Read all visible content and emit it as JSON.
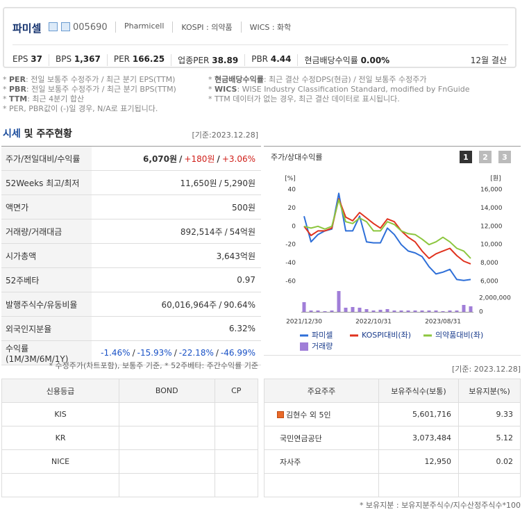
{
  "header": {
    "name": "파미셀",
    "code": "005690",
    "info": [
      "Pharmicell",
      "KOSPI : 의약품",
      "WICS : 화학"
    ],
    "metrics": [
      {
        "label": "EPS",
        "value": "37"
      },
      {
        "label": "BPS",
        "value": "1,367"
      },
      {
        "label": "PER",
        "value": "166.25"
      },
      {
        "label": "업종PER",
        "value": "38.89"
      },
      {
        "label": "PBR",
        "value": "4.44"
      },
      {
        "label": "현금배당수익률",
        "value": "0.00%"
      }
    ],
    "settle": "12월 결산"
  },
  "notes": {
    "left": [
      {
        "star": "*",
        "term": "PER",
        "text": ": 전일 보통주 수정주가 / 최근 분기 EPS(TTM)"
      },
      {
        "star": "*",
        "term": "PBR",
        "text": ": 전일 보통주 수정주가 / 최근 분기 BPS(TTM)"
      },
      {
        "star": "*",
        "term": "TTM",
        "text": ": 최근 4분기 합산"
      },
      {
        "star": "*",
        "text": "PER, PBR값이 (-)일 경우, N/A로 표기됩니다."
      }
    ],
    "right": [
      {
        "star": "*",
        "term": "현금배당수익률",
        "text": ": 최근 결산 수정DPS(현금) / 전일 보통주 수정주가"
      },
      {
        "star": "*",
        "term": "WICS",
        "text": ": WISE Industry Classification Standard, modified by FnGuide"
      },
      {
        "star": "*",
        "text": "TTM 데이터가 없는 경우, 최근 결산 데이터로 표시됩니다."
      }
    ]
  },
  "section": {
    "title_accent": "시세",
    "title_rest": "및 주주현황",
    "date": "[기준:2023.12.28]"
  },
  "quote_table": {
    "sep": "/",
    "rows": [
      {
        "label": "주가/전일대비/수익률",
        "values": [
          "6,070원",
          "+180원",
          "+3.06%"
        ]
      },
      {
        "label": "52Weeks 최고/최저",
        "values": [
          "11,650원",
          "5,290원"
        ]
      },
      {
        "label": "액면가",
        "values": [
          "500원"
        ]
      },
      {
        "label": "거래량/거래대금",
        "values": [
          "892,514주",
          "54억원"
        ]
      },
      {
        "label": "시가총액",
        "values": [
          "3,643억원"
        ]
      },
      {
        "label": "52주베타",
        "values": [
          "0.97"
        ]
      },
      {
        "label": "발행주식수/유동비율",
        "values": [
          "60,016,964주",
          "90.64%"
        ]
      },
      {
        "label": "외국인지분율",
        "values": [
          "6.32%"
        ]
      },
      {
        "label": "수익률 (1M/3M/6M/1Y)",
        "values": [
          "-1.46%",
          "-15.93%",
          "-22.18%",
          "-46.99%"
        ]
      }
    ],
    "footnote": "* 수정주가(차트포함), 보통주 기준, * 52주베타: 주간수익률 기준"
  },
  "chart_data": {
    "type": "line",
    "title": "주가/상대수익률",
    "tabs": [
      "1",
      "2",
      "3"
    ],
    "y_unit": "[%]",
    "y2_unit": "[원]",
    "categories": [
      "2021/12/30",
      null,
      null,
      null,
      null,
      null,
      null,
      null,
      null,
      null,
      "2022/10/31",
      null,
      null,
      null,
      null,
      null,
      null,
      null,
      null,
      null,
      "2023/08/31",
      null,
      null,
      null,
      null
    ],
    "ylim": [
      -60,
      40
    ],
    "yticks": [
      40,
      20,
      0,
      -20,
      -40,
      -60
    ],
    "y2lim": [
      6000,
      16000
    ],
    "y2ticks": [
      {
        "value": 16000,
        "label": "16,000"
      },
      {
        "value": 14000,
        "label": "14,000"
      },
      {
        "value": 12000,
        "label": "12,000"
      },
      {
        "value": 10000,
        "label": "10,000"
      },
      {
        "value": 8000,
        "label": "8,000"
      },
      {
        "value": 6000,
        "label": "6,000"
      }
    ],
    "vlim": [
      0,
      2000000
    ],
    "vticks": [
      {
        "value": 2000000,
        "label": "2,000,000"
      },
      0
    ],
    "series": [
      {
        "name": "파미셀",
        "color": "#2e6fd8",
        "axis": "y2",
        "values": [
          13100,
          10300,
          11100,
          11500,
          11700,
          15600,
          11500,
          11500,
          13100,
          10300,
          10200,
          10200,
          11800,
          11100,
          10000,
          9300,
          9100,
          8700,
          7600,
          6800,
          7000,
          7300,
          6200,
          6100,
          6200
        ]
      },
      {
        "name": "KOSPI대비(좌)",
        "color": "#e0321e",
        "values": [
          0,
          -10,
          -5,
          -5,
          -2,
          30,
          10,
          6,
          15,
          9,
          3,
          -2,
          8,
          5,
          -5,
          -12,
          -17,
          -27,
          -35,
          -30,
          -27,
          -24,
          -32,
          -38,
          -41
        ]
      },
      {
        "name": "의약품대비(좌)",
        "color": "#8cc63e",
        "values": [
          0,
          -2,
          0,
          -3,
          0,
          29,
          5,
          3,
          9,
          5,
          -5,
          -5,
          5,
          2,
          -5,
          -8,
          -9,
          -14,
          -20,
          -17,
          -12,
          -17,
          -24,
          -27,
          -35
        ]
      },
      {
        "name": "거래량",
        "color": "#a07ed8",
        "type": "bar",
        "axis": "vol",
        "values": [
          1400000,
          200000,
          200000,
          100000,
          200000,
          3000000,
          600000,
          700000,
          600000,
          400000,
          200000,
          300000,
          400000,
          200000,
          200000,
          200000,
          200000,
          200000,
          200000,
          200000,
          100000,
          200000,
          200000,
          1000000,
          800000
        ]
      }
    ]
  },
  "credit_table": {
    "headers": [
      "신용등급",
      "BOND",
      "CP"
    ],
    "rows": [
      "KIS",
      "KR",
      "NICE"
    ]
  },
  "holders": {
    "date": "[기준: 2023.12.28]",
    "headers": [
      "주요주주",
      "보유주식수(보통)",
      "보유지분(%)"
    ],
    "rows": [
      [
        "김현수 외 5인",
        "5,601,716",
        "9.33"
      ],
      [
        "국민연금공단",
        "3,073,484",
        "5.12"
      ],
      [
        "자사주",
        "12,950",
        "0.02"
      ]
    ],
    "footnote": "* 보유지분 : 보유지분주식수/지수산정주식수*100"
  }
}
